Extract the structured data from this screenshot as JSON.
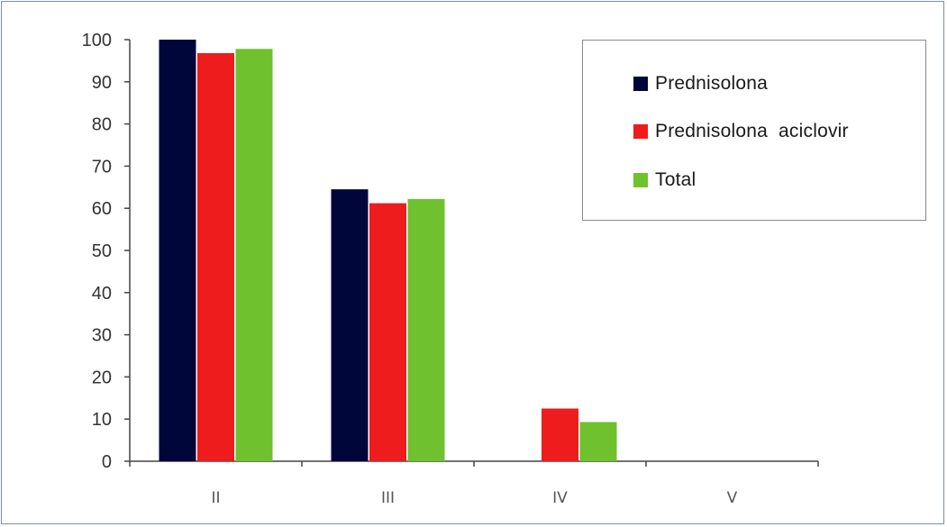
{
  "chart_data": {
    "type": "bar",
    "categories": [
      "II",
      "III",
      "IV",
      "V"
    ],
    "series": [
      {
        "name": "Prednisolona",
        "color": "#00053a",
        "values": [
          100,
          64.5,
          0,
          0
        ]
      },
      {
        "name": "Prednisolona  aciclovir",
        "color": "#ee1c1c",
        "values": [
          96.8,
          61.2,
          12.5,
          0
        ]
      },
      {
        "name": "Total",
        "color": "#6fc12e",
        "values": [
          97.8,
          62.2,
          9.3,
          0
        ]
      }
    ],
    "yticks": [
      "0",
      "10",
      "20",
      "30",
      "40",
      "50",
      "60",
      "70",
      "80",
      "90",
      "100"
    ],
    "ylim": [
      0,
      100
    ],
    "title": "",
    "xlabel": "",
    "ylabel": "",
    "legend_position": "top-right",
    "grid": false
  },
  "legend": {
    "items": [
      {
        "label": "Prednisolona",
        "color": "#00053a"
      },
      {
        "label": "Prednisolona  aciclovir",
        "color": "#ee1c1c"
      },
      {
        "label": "Total",
        "color": "#6fc12e"
      }
    ]
  }
}
